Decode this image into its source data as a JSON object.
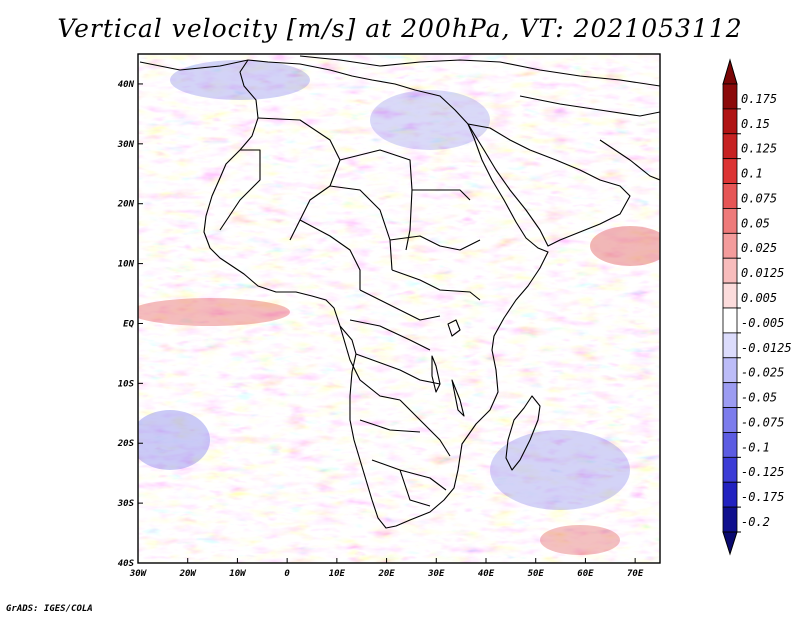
{
  "title": "Vertical velocity [m/s] at 200hPa, VT: 2021053112",
  "credit": "GrADS: IGES/COLA",
  "map": {
    "region": "Africa",
    "lon_range": [
      -30,
      75
    ],
    "lat_range": [
      -40,
      45
    ],
    "lat_ticks": [
      {
        "value": 40,
        "label": "40N"
      },
      {
        "value": 30,
        "label": "30N"
      },
      {
        "value": 20,
        "label": "20N"
      },
      {
        "value": 10,
        "label": "10N"
      },
      {
        "value": 0,
        "label": "EQ"
      },
      {
        "value": -10,
        "label": "10S"
      },
      {
        "value": -20,
        "label": "20S"
      },
      {
        "value": -30,
        "label": "30S"
      },
      {
        "value": -40,
        "label": "40S"
      }
    ],
    "lon_ticks": [
      {
        "value": -30,
        "label": "30W"
      },
      {
        "value": -20,
        "label": "20W"
      },
      {
        "value": -10,
        "label": "10W"
      },
      {
        "value": 0,
        "label": "0"
      },
      {
        "value": 10,
        "label": "10E"
      },
      {
        "value": 20,
        "label": "20E"
      },
      {
        "value": 30,
        "label": "30E"
      },
      {
        "value": 40,
        "label": "40E"
      },
      {
        "value": 50,
        "label": "50E"
      },
      {
        "value": 60,
        "label": "60E"
      },
      {
        "value": 70,
        "label": "70E"
      }
    ]
  },
  "colorbar": {
    "levels": [
      {
        "label": "0.175",
        "color": "#8b0a0a"
      },
      {
        "label": "0.15",
        "color": "#b01414"
      },
      {
        "label": "0.125",
        "color": "#c62222"
      },
      {
        "label": "0.1",
        "color": "#dc3434"
      },
      {
        "label": "0.075",
        "color": "#e65656"
      },
      {
        "label": "0.05",
        "color": "#ee7a7a"
      },
      {
        "label": "0.025",
        "color": "#f49c9c"
      },
      {
        "label": "0.0125",
        "color": "#f8bcbc"
      },
      {
        "label": "0.005",
        "color": "#fcdcdc"
      },
      {
        "label": "-0.005",
        "color": "#ffffff"
      },
      {
        "label": "-0.0125",
        "color": "#dcdcfc"
      },
      {
        "label": "-0.025",
        "color": "#bcbcf8"
      },
      {
        "label": "-0.05",
        "color": "#9c9cf2"
      },
      {
        "label": "-0.075",
        "color": "#7c7cec"
      },
      {
        "label": "-0.1",
        "color": "#5c5ce2"
      },
      {
        "label": "-0.125",
        "color": "#3c3cd6"
      },
      {
        "label": "-0.175",
        "color": "#2222c0"
      },
      {
        "label": "-0.2",
        "color": "#10108e"
      }
    ],
    "top_color": "#7a0606",
    "bottom_color": "#0a0a70"
  }
}
